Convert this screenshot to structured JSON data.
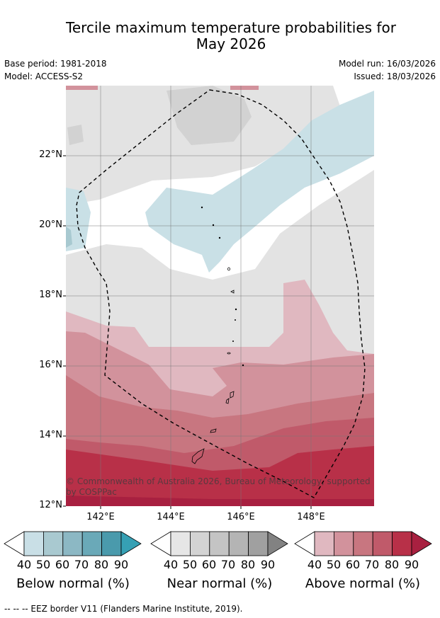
{
  "title_line1": "Tercile maximum temperature probabilities for",
  "title_line2": "May 2026",
  "meta": {
    "base_period": "Base period: 1981-2018",
    "model": "Model: ACCESS-S2",
    "model_run": "Model run: 16/03/2026",
    "issued": "Issued: 18/03/2026"
  },
  "axes": {
    "y_labels": [
      "22°N",
      "20°N",
      "18°N",
      "16°N",
      "14°N",
      "12°N"
    ],
    "x_labels": [
      "142°E",
      "144°E",
      "146°E",
      "148°E"
    ]
  },
  "copyright": "© Commonwealth of Australia 2026, Bureau of Meteorology, supported by COSPPac",
  "legend": {
    "ticks": [
      "40",
      "50",
      "60",
      "70",
      "80",
      "90"
    ],
    "below_title": "Below normal (%)",
    "near_title": "Near normal (%)",
    "above_title": "Above normal (%)",
    "below_colors": [
      "#c9dfe6",
      "#a9c9d0",
      "#8cb8c4",
      "#6aa9b8",
      "#4a9aac",
      "#36a0b4"
    ],
    "near_colors": [
      "#e6e6e6",
      "#d3d3d3",
      "#c4c4c4",
      "#b4b4b4",
      "#a0a0a0",
      "#828282"
    ],
    "above_colors": [
      "#e0b8c0",
      "#d2929c",
      "#c87680",
      "#c05a6a",
      "#b83048",
      "#a82040"
    ]
  },
  "footer": "-- -- -- EEZ border V11 (Flanders Marine Institute, 2019)."
}
